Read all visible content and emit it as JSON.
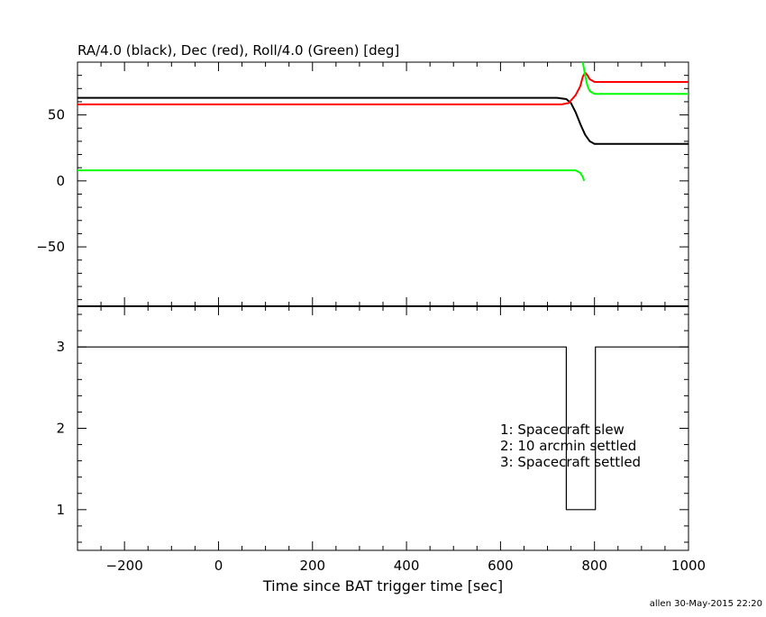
{
  "chart_data": [
    {
      "type": "line",
      "title": "RA/4.0 (black), Dec (red), Roll/4.0 (Green) [deg]",
      "xlim": [
        -300,
        1000
      ],
      "ylim": [
        -95,
        90
      ],
      "y_ticks": [
        -50,
        0,
        50
      ],
      "y_tick_labels": [
        "−50",
        "0",
        "50"
      ],
      "series": [
        {
          "color": "#000000",
          "x": [
            -300,
            350,
            720,
            740,
            750,
            760,
            770,
            780,
            790,
            800,
            820,
            1000
          ],
          "y": [
            63,
            63,
            63,
            62,
            59,
            52,
            43,
            35,
            30,
            28,
            28,
            28
          ]
        },
        {
          "color": "#ff0000",
          "x": [
            -300,
            350,
            730,
            745,
            760,
            770,
            775,
            780,
            785,
            790,
            800,
            820,
            1000
          ],
          "y": [
            58,
            58,
            58,
            59,
            65,
            72,
            79,
            82,
            80,
            77,
            75,
            75,
            75
          ]
        },
        {
          "color": "#00ff00",
          "x": [
            -300,
            350,
            760,
            770,
            775,
            778
          ],
          "y": [
            8,
            8,
            8,
            6,
            3,
            0
          ]
        },
        {
          "color": "#00ff00",
          "x": [
            775,
            780,
            785,
            790,
            800,
            820,
            1000
          ],
          "y": [
            90,
            80,
            72,
            68,
            66,
            66,
            66
          ]
        }
      ]
    },
    {
      "type": "line",
      "xlabel": "Time since BAT trigger time [sec]",
      "xlim": [
        -300,
        1000
      ],
      "ylim": [
        0.5,
        3.5
      ],
      "x_ticks": [
        -200,
        0,
        200,
        400,
        600,
        800,
        1000
      ],
      "x_tick_labels": [
        "−200",
        "0",
        "200",
        "400",
        "600",
        "800",
        "1000"
      ],
      "y_ticks": [
        1,
        2,
        3
      ],
      "y_tick_labels": [
        "1",
        "2",
        "3"
      ],
      "series": [
        {
          "color": "#000000",
          "x": [
            -300,
            740,
            740,
            802,
            802,
            813,
            813,
            1000
          ],
          "y": [
            3,
            3,
            1,
            1,
            3,
            3,
            3,
            3
          ],
          "step": true
        }
      ],
      "annotations": [
        "1: Spacecraft slew",
        "2: 10 arcmin settled",
        "3: Spacecraft settled"
      ]
    }
  ],
  "footer": {
    "stamp": "allen 30-May-2015 22:20"
  }
}
